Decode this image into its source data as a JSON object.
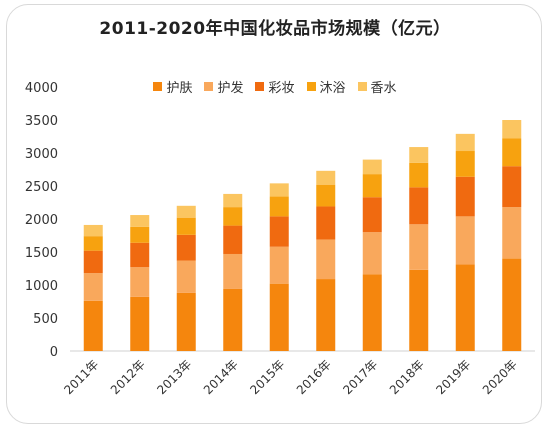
{
  "chart_data": {
    "type": "bar",
    "stacked": true,
    "title": "2011-2020年中国化妆品市场规模（亿元）",
    "categories": [
      "2011年",
      "2012年",
      "2013年",
      "2014年",
      "2015年",
      "2016年",
      "2017年",
      "2018年",
      "2019年",
      "2020年"
    ],
    "series": [
      {
        "name": "护肤",
        "color": "#f5860d",
        "values": [
          760,
          820,
          880,
          940,
          1020,
          1090,
          1160,
          1230,
          1310,
          1400
        ]
      },
      {
        "name": "护发",
        "color": "#f9a85c",
        "values": [
          420,
          450,
          490,
          530,
          560,
          600,
          640,
          690,
          730,
          780
        ]
      },
      {
        "name": "彩妆",
        "color": "#f06a10",
        "values": [
          340,
          370,
          390,
          430,
          460,
          500,
          530,
          560,
          600,
          620
        ]
      },
      {
        "name": "沐浴",
        "color": "#f7a20f",
        "values": [
          220,
          240,
          260,
          280,
          300,
          330,
          350,
          370,
          390,
          420
        ]
      },
      {
        "name": "香水",
        "color": "#fbc560",
        "values": [
          170,
          180,
          180,
          200,
          200,
          210,
          220,
          240,
          260,
          280
        ]
      }
    ],
    "ylim": [
      0,
      4000
    ],
    "yticks": [
      0,
      500,
      1000,
      1500,
      2000,
      2500,
      3000,
      3500,
      4000
    ],
    "legend_position": "top",
    "grid": false
  }
}
